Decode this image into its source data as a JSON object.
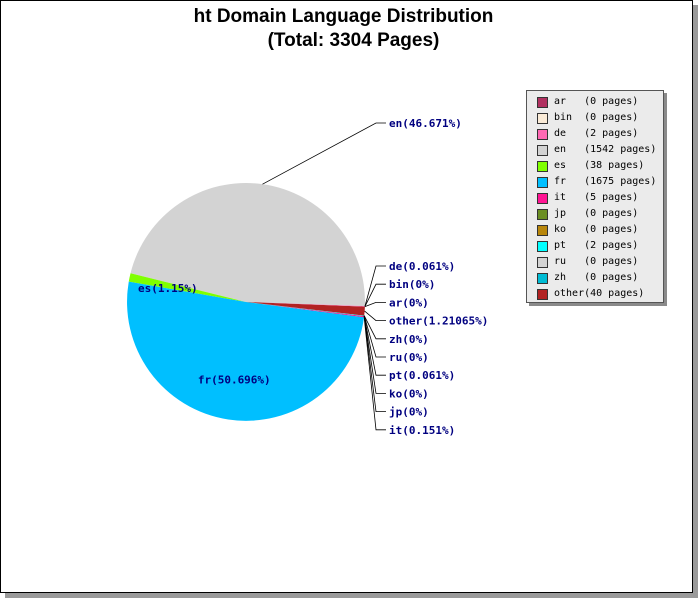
{
  "chart_data": {
    "type": "pie",
    "title": "ht Domain Language Distribution",
    "subtitle": "(Total: 3304 Pages)",
    "slices": [
      {
        "label": "en(46.671%)",
        "code": "en",
        "pages": 1542,
        "color": "#d3d3d3"
      },
      {
        "label": "es(1.15%)",
        "code": "es",
        "pages": 38,
        "color": "#7fff00"
      },
      {
        "label": "fr(50.696%)",
        "code": "fr",
        "pages": 1675,
        "color": "#00bfff"
      },
      {
        "label": "it(0.151%)",
        "code": "it",
        "pages": 5,
        "color": "#ff1493"
      },
      {
        "label": "jp(0%)",
        "code": "jp",
        "pages": 0,
        "color": "#6b8e23"
      },
      {
        "label": "ko(0%)",
        "code": "ko",
        "pages": 0,
        "color": "#b8860b"
      },
      {
        "label": "pt(0.061%)",
        "code": "pt",
        "pages": 2,
        "color": "#00ffff"
      },
      {
        "label": "ru(0%)",
        "code": "ru",
        "pages": 0,
        "color": "#d3d3d3"
      },
      {
        "label": "zh(0%)",
        "code": "zh",
        "pages": 0,
        "color": "#00bcd4"
      },
      {
        "label": "other(1.21065%)",
        "code": "other",
        "pages": 40,
        "color": "#b22222"
      },
      {
        "label": "ar(0%)",
        "code": "ar",
        "pages": 0,
        "color": "#b03060"
      },
      {
        "label": "bin(0%)",
        "code": "bin",
        "pages": 0,
        "color": "#faebd7"
      },
      {
        "label": "de(0.061%)",
        "code": "de",
        "pages": 2,
        "color": "#ff69b4"
      }
    ],
    "legend": {
      "placement": "right",
      "items": [
        {
          "text": "ar   (0 pages)",
          "color": "#b03060"
        },
        {
          "text": "bin  (0 pages)",
          "color": "#faebd7"
        },
        {
          "text": "de   (2 pages)",
          "color": "#ff69b4"
        },
        {
          "text": "en   (1542 pages)",
          "color": "#d3d3d3"
        },
        {
          "text": "es   (38 pages)",
          "color": "#7fff00"
        },
        {
          "text": "fr   (1675 pages)",
          "color": "#00bfff"
        },
        {
          "text": "it   (5 pages)",
          "color": "#ff1493"
        },
        {
          "text": "jp   (0 pages)",
          "color": "#6b8e23"
        },
        {
          "text": "ko   (0 pages)",
          "color": "#b8860b"
        },
        {
          "text": "pt   (2 pages)",
          "color": "#00ffff"
        },
        {
          "text": "ru   (0 pages)",
          "color": "#d3d3d3"
        },
        {
          "text": "zh   (0 pages)",
          "color": "#00bcd4"
        },
        {
          "text": "other(40 pages)",
          "color": "#b22222"
        }
      ]
    }
  }
}
